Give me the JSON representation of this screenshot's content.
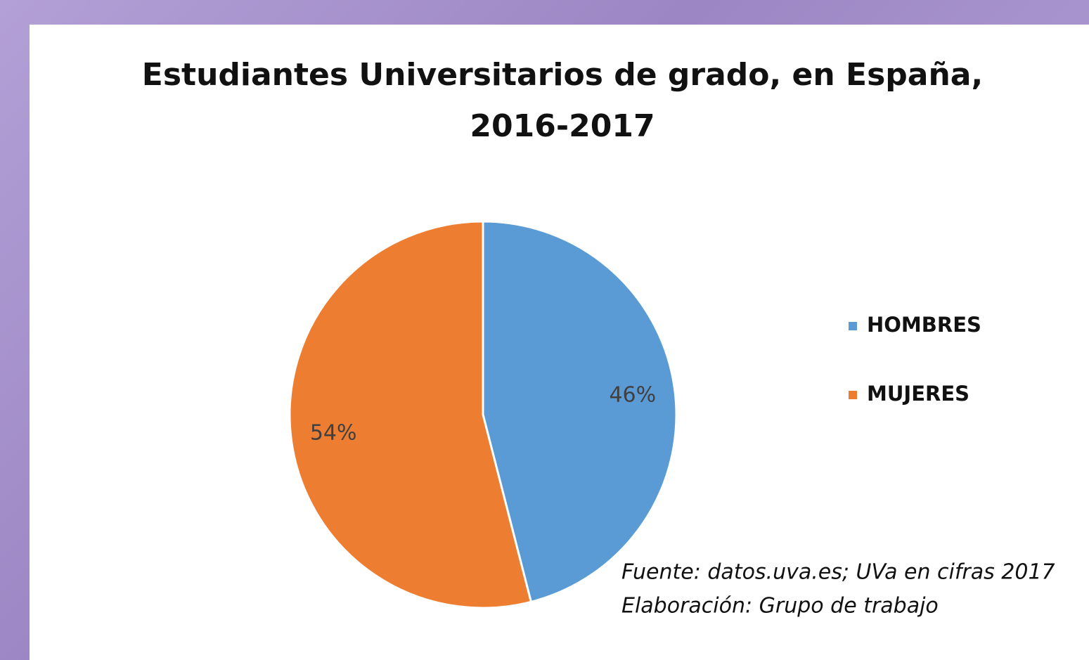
{
  "chart_data": {
    "type": "pie",
    "title": "Estudiantes Universitarios de grado, en España, 2016-2017",
    "categories": [
      "HOMBRES",
      "MUJERES"
    ],
    "values": [
      46,
      54
    ],
    "value_labels": [
      "46%",
      "54%"
    ],
    "colors": [
      "#5b9bd5",
      "#ed7d31"
    ],
    "legend": "right",
    "annotations": [
      "Fuente: datos.uva.es; UVa en cifras 2017",
      "Elaboración: Grupo de trabajo"
    ]
  }
}
